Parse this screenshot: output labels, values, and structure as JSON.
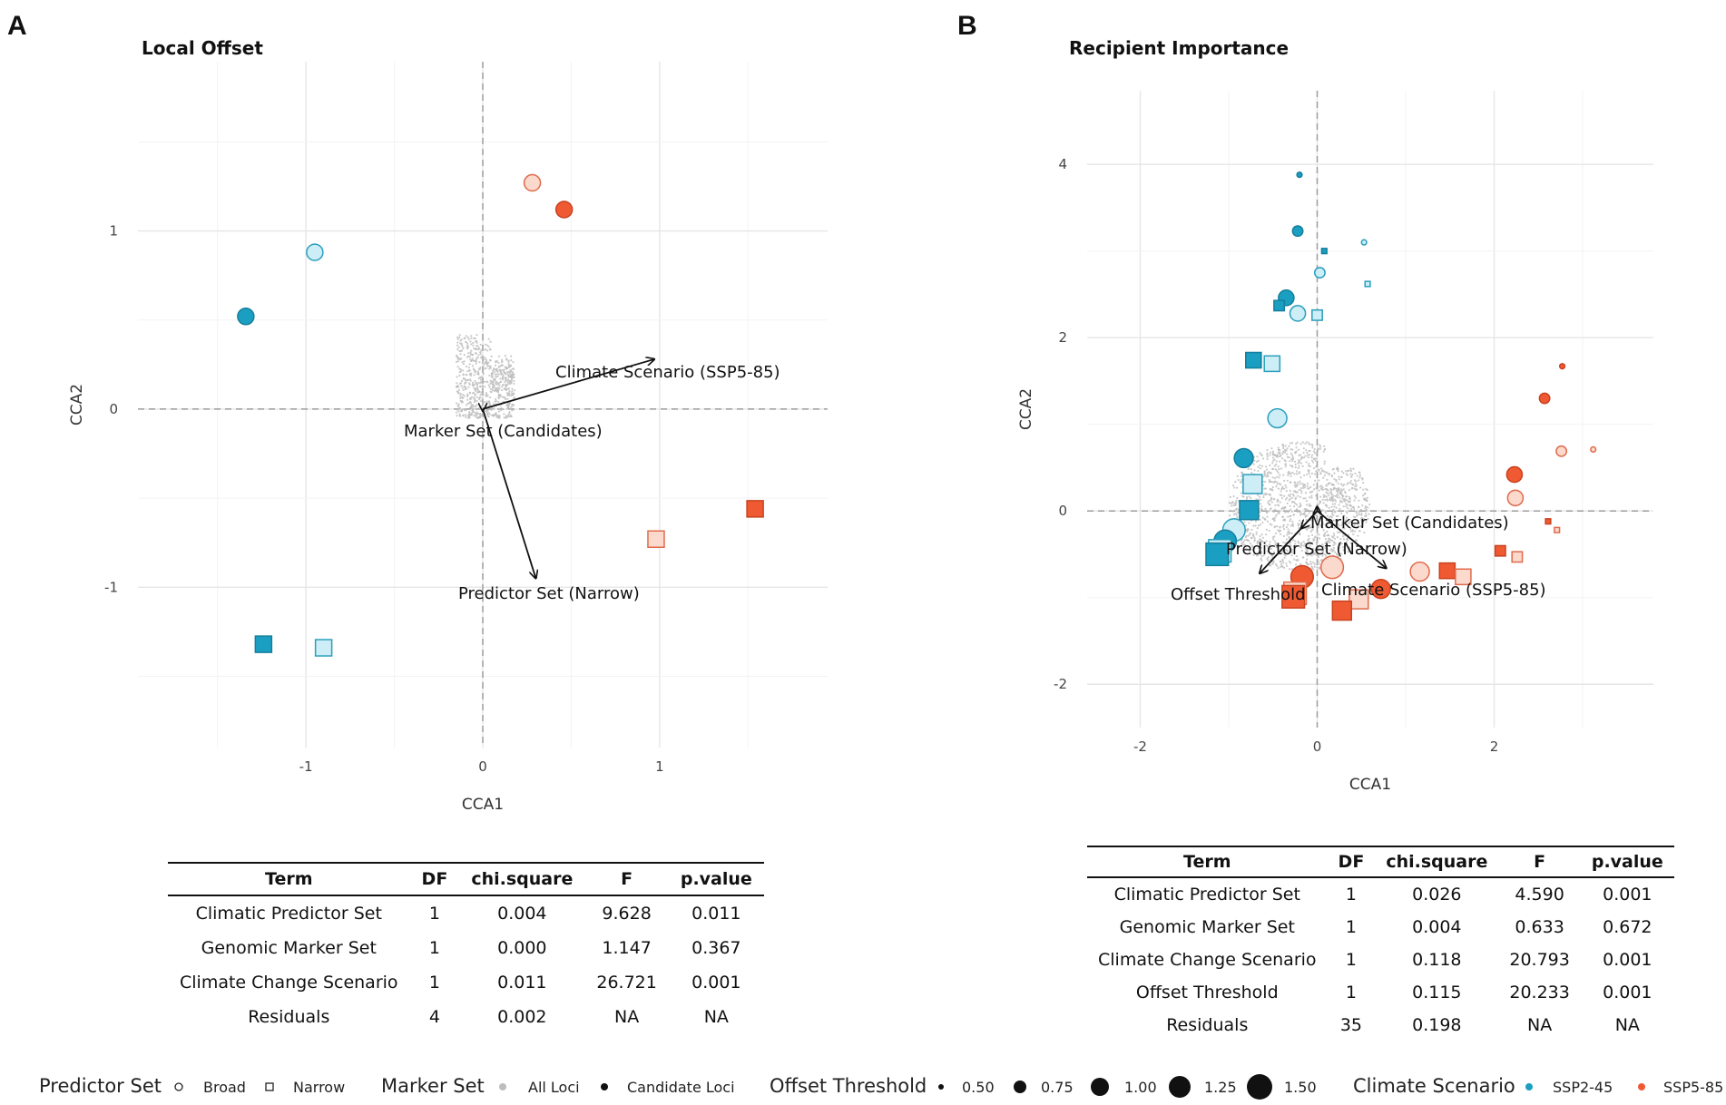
{
  "panel_letters": [
    "A",
    "B"
  ],
  "chart_data": [
    {
      "type": "scatter",
      "title": "Local Offset",
      "xlabel": "CCA1",
      "ylabel": "CCA2",
      "xlim": [
        -1.95,
        1.95
      ],
      "ylim": [
        -1.9,
        1.95
      ],
      "xticks": [
        -1,
        0,
        1
      ],
      "yticks": [
        -1,
        0,
        1
      ],
      "grid": true,
      "points": [
        {
          "x": 0.28,
          "y": 1.27,
          "predictor": "Broad",
          "marker": "Candidate Loci",
          "scenario": "SSP5-85",
          "threshold": 1.0,
          "shade": "light"
        },
        {
          "x": 0.46,
          "y": 1.12,
          "predictor": "Broad",
          "marker": "Candidate Loci",
          "scenario": "SSP5-85",
          "threshold": 1.0,
          "shade": "dark"
        },
        {
          "x": -0.95,
          "y": 0.88,
          "predictor": "Broad",
          "marker": "Candidate Loci",
          "scenario": "SSP2-45",
          "threshold": 1.0,
          "shade": "light"
        },
        {
          "x": -1.34,
          "y": 0.52,
          "predictor": "Broad",
          "marker": "Candidate Loci",
          "scenario": "SSP2-45",
          "threshold": 1.0,
          "shade": "dark"
        },
        {
          "x": 1.54,
          "y": -0.56,
          "predictor": "Narrow",
          "marker": "Candidate Loci",
          "scenario": "SSP5-85",
          "threshold": 1.0,
          "shade": "dark"
        },
        {
          "x": 0.98,
          "y": -0.73,
          "predictor": "Narrow",
          "marker": "Candidate Loci",
          "scenario": "SSP5-85",
          "threshold": 1.0,
          "shade": "light"
        },
        {
          "x": -1.24,
          "y": -1.32,
          "predictor": "Narrow",
          "marker": "Candidate Loci",
          "scenario": "SSP2-45",
          "threshold": 1.0,
          "shade": "dark"
        },
        {
          "x": -0.9,
          "y": -1.34,
          "predictor": "Narrow",
          "marker": "Candidate Loci",
          "scenario": "SSP2-45",
          "threshold": 1.0,
          "shade": "light"
        }
      ],
      "arrows": [
        {
          "label": "Climate Scenario (SSP5-85)",
          "x": 0.97,
          "y": 0.28
        },
        {
          "label": "Marker Set (Candidates)",
          "x": 0.0,
          "y": -0.01
        },
        {
          "label": "Predictor Set (Narrow)",
          "x": 0.3,
          "y": -0.95
        }
      ],
      "cloud": {
        "marker": "All Loci",
        "x_range": [
          -0.15,
          0.18
        ],
        "y_range": [
          -0.05,
          0.42
        ]
      }
    },
    {
      "type": "scatter",
      "title": "Recipient Importance",
      "xlabel": "CCA1",
      "ylabel": "CCA2",
      "xlim": [
        -2.6,
        3.8
      ],
      "ylim": [
        -2.5,
        4.85
      ],
      "xticks": [
        -2,
        0,
        2
      ],
      "yticks": [
        -2,
        0,
        2,
        4
      ],
      "grid": true,
      "points": [
        {
          "x": -0.2,
          "y": 3.88,
          "predictor": "Broad",
          "marker": "Candidate Loci",
          "scenario": "SSP2-45",
          "threshold": 0.5,
          "shade": "dark"
        },
        {
          "x": -0.22,
          "y": 3.23,
          "predictor": "Broad",
          "marker": "Candidate Loci",
          "scenario": "SSP2-45",
          "threshold": 0.75,
          "shade": "dark"
        },
        {
          "x": 0.08,
          "y": 3.0,
          "predictor": "Narrow",
          "marker": "Candidate Loci",
          "scenario": "SSP2-45",
          "threshold": 0.5,
          "shade": "dark"
        },
        {
          "x": 0.53,
          "y": 3.1,
          "predictor": "Broad",
          "marker": "All Loci",
          "scenario": "SSP2-45",
          "threshold": 0.5,
          "shade": "light"
        },
        {
          "x": 0.03,
          "y": 2.75,
          "predictor": "Broad",
          "marker": "All Loci",
          "scenario": "SSP2-45",
          "threshold": 0.75,
          "shade": "light"
        },
        {
          "x": 0.57,
          "y": 2.62,
          "predictor": "Narrow",
          "marker": "All Loci",
          "scenario": "SSP2-45",
          "threshold": 0.5,
          "shade": "light"
        },
        {
          "x": -0.35,
          "y": 2.46,
          "predictor": "Broad",
          "marker": "Candidate Loci",
          "scenario": "SSP2-45",
          "threshold": 1.0,
          "shade": "dark"
        },
        {
          "x": -0.43,
          "y": 2.37,
          "predictor": "Narrow",
          "marker": "Candidate Loci",
          "scenario": "SSP2-45",
          "threshold": 0.75,
          "shade": "dark"
        },
        {
          "x": -0.22,
          "y": 2.28,
          "predictor": "Broad",
          "marker": "All Loci",
          "scenario": "SSP2-45",
          "threshold": 1.0,
          "shade": "light"
        },
        {
          "x": 0.0,
          "y": 2.26,
          "predictor": "Narrow",
          "marker": "All Loci",
          "scenario": "SSP2-45",
          "threshold": 0.75,
          "shade": "light"
        },
        {
          "x": -0.72,
          "y": 1.74,
          "predictor": "Narrow",
          "marker": "Candidate Loci",
          "scenario": "SSP2-45",
          "threshold": 1.0,
          "shade": "dark"
        },
        {
          "x": -0.51,
          "y": 1.7,
          "predictor": "Narrow",
          "marker": "All Loci",
          "scenario": "SSP2-45",
          "threshold": 1.0,
          "shade": "light"
        },
        {
          "x": -0.45,
          "y": 1.07,
          "predictor": "Broad",
          "marker": "All Loci",
          "scenario": "SSP2-45",
          "threshold": 1.25,
          "shade": "light"
        },
        {
          "x": -0.83,
          "y": 0.61,
          "predictor": "Broad",
          "marker": "Candidate Loci",
          "scenario": "SSP2-45",
          "threshold": 1.25,
          "shade": "dark"
        },
        {
          "x": -0.73,
          "y": 0.31,
          "predictor": "Narrow",
          "marker": "All Loci",
          "scenario": "SSP2-45",
          "threshold": 1.25,
          "shade": "light"
        },
        {
          "x": -0.77,
          "y": 0.01,
          "predictor": "Narrow",
          "marker": "Candidate Loci",
          "scenario": "SSP2-45",
          "threshold": 1.25,
          "shade": "dark"
        },
        {
          "x": -0.94,
          "y": -0.22,
          "predictor": "Broad",
          "marker": "All Loci",
          "scenario": "SSP2-45",
          "threshold": 1.5,
          "shade": "light"
        },
        {
          "x": -1.04,
          "y": -0.35,
          "predictor": "Broad",
          "marker": "Candidate Loci",
          "scenario": "SSP2-45",
          "threshold": 1.5,
          "shade": "dark"
        },
        {
          "x": -1.1,
          "y": -0.46,
          "predictor": "Narrow",
          "marker": "All Loci",
          "scenario": "SSP2-45",
          "threshold": 1.5,
          "shade": "light"
        },
        {
          "x": -1.13,
          "y": -0.5,
          "predictor": "Narrow",
          "marker": "Candidate Loci",
          "scenario": "SSP2-45",
          "threshold": 1.5,
          "shade": "dark"
        },
        {
          "x": 2.77,
          "y": 1.67,
          "predictor": "Broad",
          "marker": "Candidate Loci",
          "scenario": "SSP5-85",
          "threshold": 0.5,
          "shade": "dark"
        },
        {
          "x": 2.57,
          "y": 1.3,
          "predictor": "Broad",
          "marker": "Candidate Loci",
          "scenario": "SSP5-85",
          "threshold": 0.75,
          "shade": "dark"
        },
        {
          "x": 2.76,
          "y": 0.69,
          "predictor": "Broad",
          "marker": "All Loci",
          "scenario": "SSP5-85",
          "threshold": 0.75,
          "shade": "light"
        },
        {
          "x": 3.12,
          "y": 0.71,
          "predictor": "Broad",
          "marker": "All Loci",
          "scenario": "SSP5-85",
          "threshold": 0.5,
          "shade": "light"
        },
        {
          "x": 2.23,
          "y": 0.42,
          "predictor": "Broad",
          "marker": "Candidate Loci",
          "scenario": "SSP5-85",
          "threshold": 1.0,
          "shade": "dark"
        },
        {
          "x": 2.24,
          "y": 0.15,
          "predictor": "Broad",
          "marker": "All Loci",
          "scenario": "SSP5-85",
          "threshold": 1.0,
          "shade": "light"
        },
        {
          "x": 2.61,
          "y": -0.12,
          "predictor": "Narrow",
          "marker": "Candidate Loci",
          "scenario": "SSP5-85",
          "threshold": 0.5,
          "shade": "dark"
        },
        {
          "x": 2.71,
          "y": -0.22,
          "predictor": "Narrow",
          "marker": "All Loci",
          "scenario": "SSP5-85",
          "threshold": 0.5,
          "shade": "light"
        },
        {
          "x": 2.07,
          "y": -0.46,
          "predictor": "Narrow",
          "marker": "Candidate Loci",
          "scenario": "SSP5-85",
          "threshold": 0.75,
          "shade": "dark"
        },
        {
          "x": 2.26,
          "y": -0.53,
          "predictor": "Narrow",
          "marker": "All Loci",
          "scenario": "SSP5-85",
          "threshold": 0.75,
          "shade": "light"
        },
        {
          "x": 1.47,
          "y": -0.69,
          "predictor": "Narrow",
          "marker": "Candidate Loci",
          "scenario": "SSP5-85",
          "threshold": 1.0,
          "shade": "dark"
        },
        {
          "x": 1.65,
          "y": -0.76,
          "predictor": "Narrow",
          "marker": "All Loci",
          "scenario": "SSP5-85",
          "threshold": 1.0,
          "shade": "light"
        },
        {
          "x": 1.16,
          "y": -0.7,
          "predictor": "Broad",
          "marker": "All Loci",
          "scenario": "SSP5-85",
          "threshold": 1.25,
          "shade": "light"
        },
        {
          "x": 0.72,
          "y": -0.9,
          "predictor": "Broad",
          "marker": "Candidate Loci",
          "scenario": "SSP5-85",
          "threshold": 1.25,
          "shade": "dark"
        },
        {
          "x": 0.17,
          "y": -0.65,
          "predictor": "Broad",
          "marker": "All Loci",
          "scenario": "SSP5-85",
          "threshold": 1.5,
          "shade": "light"
        },
        {
          "x": -0.17,
          "y": -0.76,
          "predictor": "Broad",
          "marker": "Candidate Loci",
          "scenario": "SSP5-85",
          "threshold": 1.5,
          "shade": "dark"
        },
        {
          "x": 0.47,
          "y": -1.02,
          "predictor": "Narrow",
          "marker": "All Loci",
          "scenario": "SSP5-85",
          "threshold": 1.25,
          "shade": "light"
        },
        {
          "x": 0.28,
          "y": -1.15,
          "predictor": "Narrow",
          "marker": "Candidate Loci",
          "scenario": "SSP5-85",
          "threshold": 1.25,
          "shade": "dark"
        },
        {
          "x": -0.25,
          "y": -0.95,
          "predictor": "Narrow",
          "marker": "All Loci",
          "scenario": "SSP5-85",
          "threshold": 1.5,
          "shade": "light"
        },
        {
          "x": -0.27,
          "y": -0.99,
          "predictor": "Narrow",
          "marker": "Candidate Loci",
          "scenario": "SSP5-85",
          "threshold": 1.5,
          "shade": "dark"
        }
      ],
      "arrows": [
        {
          "label": "Marker Set (Candidates)",
          "x": 0.0,
          "y": 0.05
        },
        {
          "label": "Predictor Set (Narrow)",
          "x": -0.18,
          "y": -0.2
        },
        {
          "label": "Offset Threshold",
          "x": -0.65,
          "y": -0.72
        },
        {
          "label": "Climate Scenario (SSP5-85)",
          "x": 0.78,
          "y": -0.66
        }
      ],
      "cloud": {
        "marker": "All Loci",
        "x_range": [
          -1.0,
          0.55
        ],
        "y_range": [
          -0.8,
          0.9
        ]
      }
    }
  ],
  "tables": [
    {
      "columns": [
        "Term",
        "DF",
        "chi.square",
        "F",
        "p.value"
      ],
      "rows": [
        [
          "Climatic Predictor Set",
          "1",
          "0.004",
          "9.628",
          "0.011"
        ],
        [
          "Genomic Marker Set",
          "1",
          "0.000",
          "1.147",
          "0.367"
        ],
        [
          "Climate Change Scenario",
          "1",
          "0.011",
          "26.721",
          "0.001"
        ],
        [
          "Residuals",
          "4",
          "0.002",
          "NA",
          "NA"
        ]
      ]
    },
    {
      "columns": [
        "Term",
        "DF",
        "chi.square",
        "F",
        "p.value"
      ],
      "rows": [
        [
          "Climatic Predictor Set",
          "1",
          "0.026",
          "4.590",
          "0.001"
        ],
        [
          "Genomic Marker Set",
          "1",
          "0.004",
          "0.633",
          "0.672"
        ],
        [
          "Climate Change Scenario",
          "1",
          "0.118",
          "20.793",
          "0.001"
        ],
        [
          "Offset Threshold",
          "1",
          "0.115",
          "20.233",
          "0.001"
        ],
        [
          "Residuals",
          "35",
          "0.198",
          "NA",
          "NA"
        ]
      ]
    }
  ],
  "legend": {
    "predictor_set": {
      "title": "Predictor Set",
      "items": [
        "Broad",
        "Narrow"
      ]
    },
    "marker_set": {
      "title": "Marker Set",
      "items": [
        "All Loci",
        "Candidate Loci"
      ]
    },
    "offset_threshold": {
      "title": "Offset Threshold",
      "items": [
        "0.50",
        "0.75",
        "1.00",
        "1.25",
        "1.50"
      ]
    },
    "climate_scenario": {
      "title": "Climate Scenario",
      "items": [
        "SSP2-45",
        "SSP5-85"
      ]
    }
  },
  "colors": {
    "ssp245_dark": "#1a9fc2",
    "ssp245_light": "#cdeef6",
    "ssp585_dark": "#f05a33",
    "ssp585_light": "#fbd9cc",
    "cloud": "#bdbdbd",
    "grid": "#ebebeb"
  }
}
